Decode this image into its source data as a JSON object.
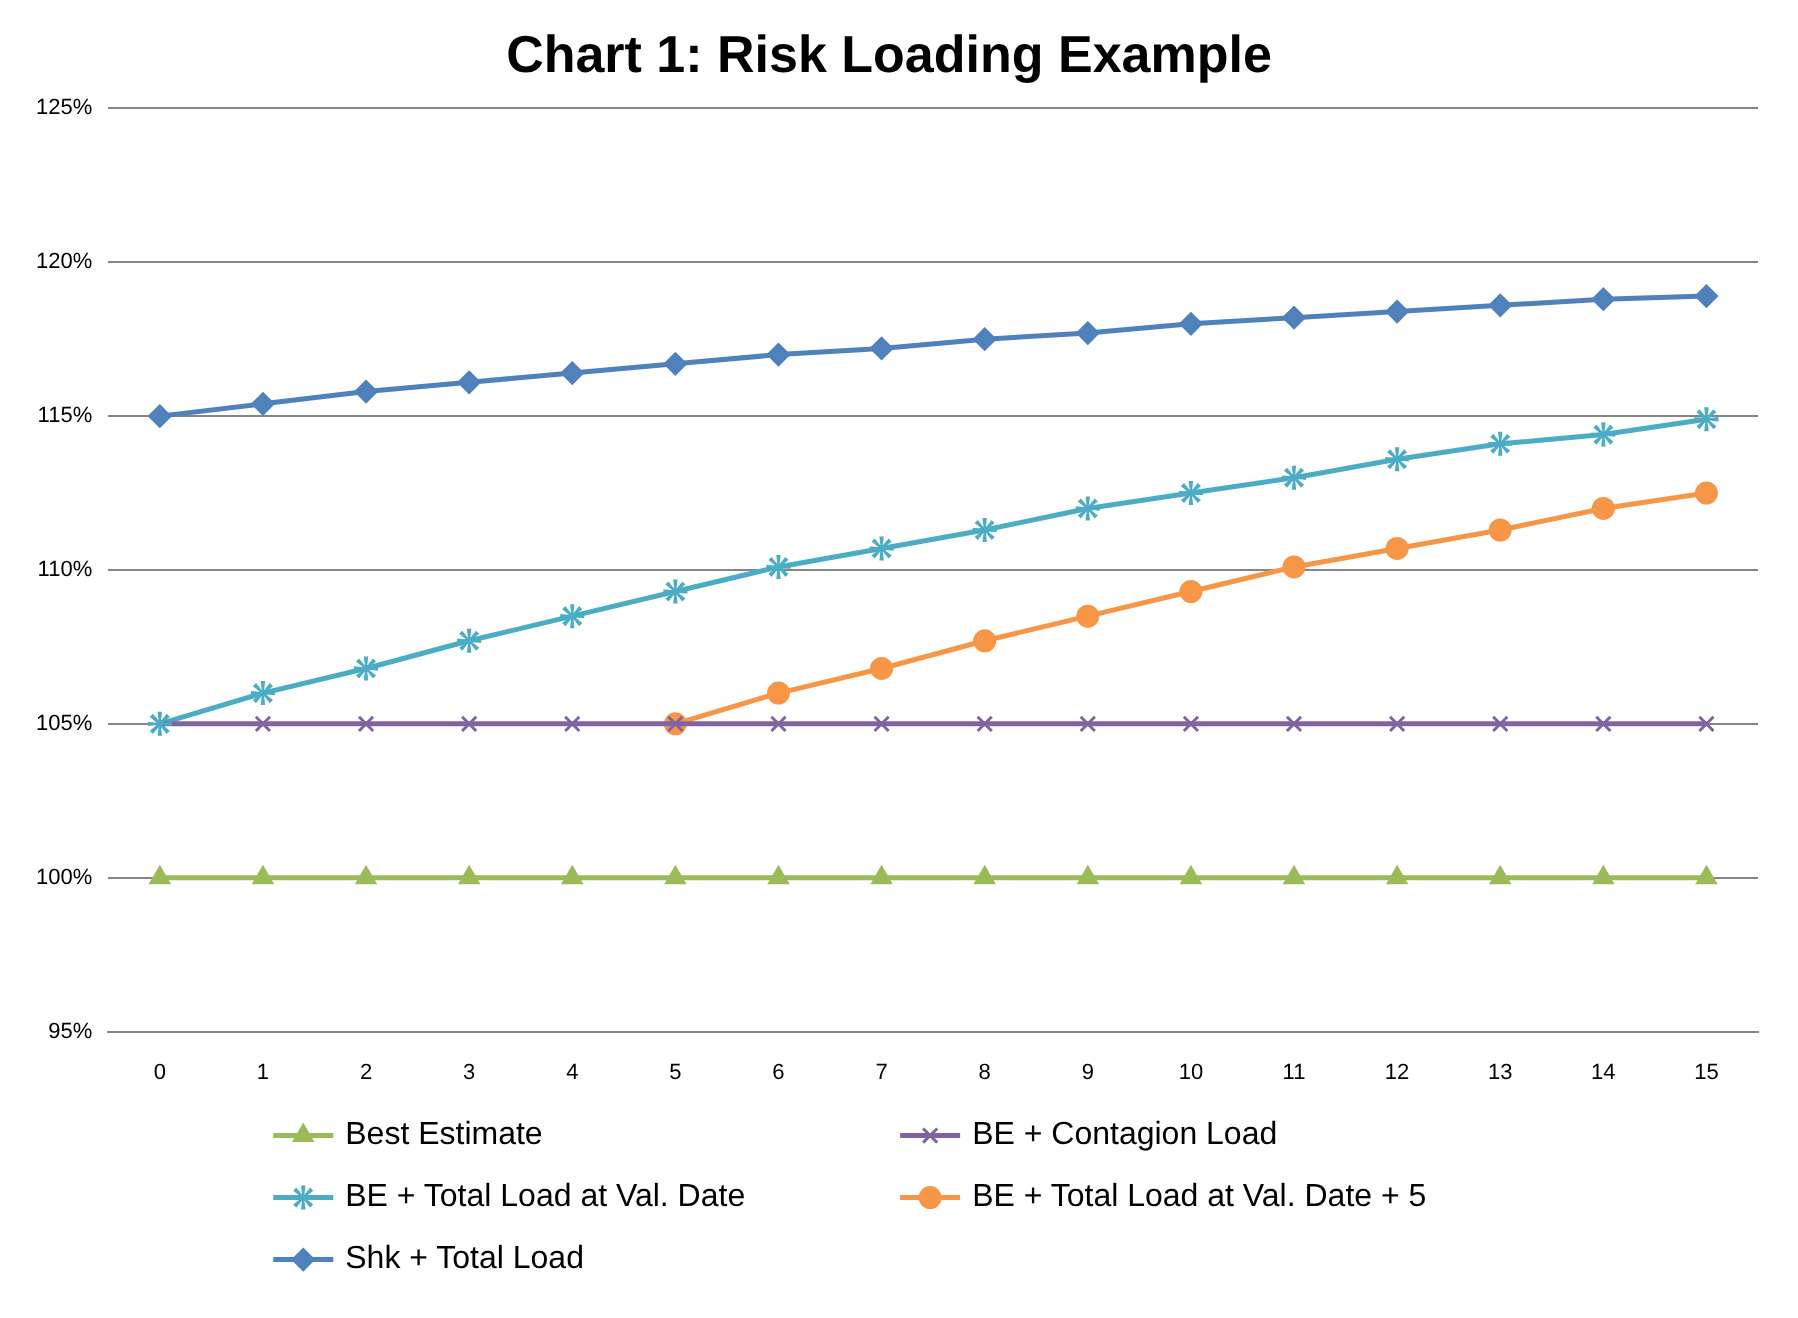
{
  "chart_data": {
    "type": "line",
    "title": "Chart 1: Risk Loading Example",
    "x": [
      0,
      1,
      2,
      3,
      4,
      5,
      6,
      7,
      8,
      9,
      10,
      11,
      12,
      13,
      14,
      15
    ],
    "xlim": [
      -0.5,
      15.5
    ],
    "xticks": [
      0,
      1,
      2,
      3,
      4,
      5,
      6,
      7,
      8,
      9,
      10,
      11,
      12,
      13,
      14,
      15
    ],
    "ylim": [
      95,
      125
    ],
    "yticks": [
      {
        "value": 95,
        "label": "95%"
      },
      {
        "value": 100,
        "label": "100%"
      },
      {
        "value": 105,
        "label": "105%"
      },
      {
        "value": 110,
        "label": "110%"
      },
      {
        "value": 115,
        "label": "115%"
      },
      {
        "value": 120,
        "label": "120%"
      },
      {
        "value": 125,
        "label": "125%"
      }
    ],
    "grid": "y",
    "legend": "bottom",
    "series": [
      {
        "name": "Best Estimate",
        "color": "#9bbb59",
        "marker": "triangle",
        "values": [
          100,
          100,
          100,
          100,
          100,
          100,
          100,
          100,
          100,
          100,
          100,
          100,
          100,
          100,
          100,
          100
        ]
      },
      {
        "name": "BE + Contagion Load",
        "color": "#8064a2",
        "marker": "cross",
        "values": [
          105,
          105,
          105,
          105,
          105,
          105,
          105,
          105,
          105,
          105,
          105,
          105,
          105,
          105,
          105,
          105
        ]
      },
      {
        "name": "BE + Total Load at Val. Date",
        "color": "#4bacc6",
        "marker": "star",
        "values": [
          105,
          106,
          106.8,
          107.7,
          108.5,
          109.3,
          110.1,
          110.7,
          111.3,
          112,
          112.5,
          113,
          113.6,
          114.1,
          114.4,
          114.9
        ]
      },
      {
        "name": "BE + Total Load at Val. Date + 5",
        "color": "#f79646",
        "marker": "circle",
        "values": [
          null,
          null,
          null,
          null,
          null,
          105,
          106,
          106.8,
          107.7,
          108.5,
          109.3,
          110.1,
          110.7,
          111.3,
          112,
          112.5
        ]
      },
      {
        "name": "Shk + Total Load",
        "color": "#4f81bd",
        "marker": "diamond",
        "values": [
          115,
          115.4,
          115.8,
          116.1,
          116.4,
          116.7,
          117,
          117.2,
          117.5,
          117.7,
          118,
          118.2,
          118.4,
          118.6,
          118.8,
          118.9
        ]
      }
    ]
  }
}
